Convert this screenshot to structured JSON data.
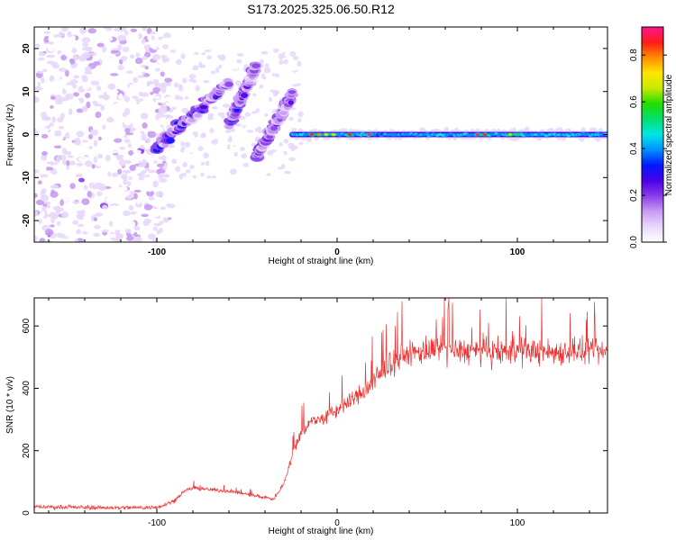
{
  "title": "S173.2025.325.06.50.R12",
  "chart_data": [
    {
      "type": "heatmap",
      "name": "spectrogram",
      "xlabel": "Height of straight line (km)",
      "ylabel": "Frequency (Hz)",
      "xlim": [
        -168,
        150
      ],
      "ylim": [
        -25,
        25
      ],
      "xticks": [
        -100,
        0,
        100
      ],
      "yticks": [
        -20,
        -10,
        0,
        10,
        20
      ],
      "colorbar": {
        "label": "Normalized spectral amplitude",
        "range": [
          0,
          0.92
        ],
        "ticks": [
          "0.0",
          "0.2",
          "0.4",
          "0.6",
          "0.8"
        ],
        "tick_values": [
          0,
          0.2,
          0.4,
          0.6,
          0.8
        ],
        "colors": [
          "#ffffff",
          "#e8d8fb",
          "#c79bf2",
          "#8a3dea",
          "#4b00e6",
          "#0018ff",
          "#0090ff",
          "#00e6e6",
          "#00e070",
          "#22dd00",
          "#c8e800",
          "#ffe600",
          "#ff8c00",
          "#ff1a1a",
          "#ff1493"
        ]
      },
      "features": {
        "noise_region_x": [
          -168,
          -100
        ],
        "rising_segments": [
          {
            "x": [
              -100,
              -60
            ],
            "freq": [
              -3,
              12
            ]
          },
          {
            "x": [
              -60,
              -45
            ],
            "freq": [
              2,
              16
            ]
          },
          {
            "x": [
              -45,
              -25
            ],
            "freq": [
              -5,
              9
            ]
          }
        ],
        "stable_band": {
          "x": [
            -25,
            150
          ],
          "freq": 0,
          "peak_amplitude": 0.9
        }
      }
    },
    {
      "type": "line",
      "name": "snr",
      "xlabel": "Height of straight line (km)",
      "ylabel": "SNR (10 * v/v)",
      "xlim": [
        -168,
        150
      ],
      "ylim": [
        0,
        690
      ],
      "xticks": [
        -100,
        0,
        100
      ],
      "yticks": [
        0,
        200,
        400,
        600
      ],
      "color": "#ee3333",
      "series": [
        {
          "name": "SNR",
          "x": [
            -168,
            -150,
            -120,
            -100,
            -90,
            -85,
            -80,
            -70,
            -60,
            -50,
            -45,
            -40,
            -35,
            -30,
            -25,
            -20,
            -15,
            -10,
            -5,
            0,
            5,
            10,
            15,
            20,
            25,
            30,
            35,
            40,
            50,
            60,
            70,
            80,
            90,
            100,
            110,
            120,
            130,
            140,
            150
          ],
          "values": [
            20,
            18,
            17,
            18,
            40,
            70,
            80,
            75,
            70,
            60,
            55,
            50,
            45,
            90,
            180,
            260,
            290,
            300,
            310,
            330,
            350,
            370,
            390,
            420,
            450,
            480,
            500,
            510,
            520,
            525,
            520,
            515,
            515,
            520,
            520,
            515,
            520,
            515,
            515
          ]
        }
      ]
    }
  ]
}
